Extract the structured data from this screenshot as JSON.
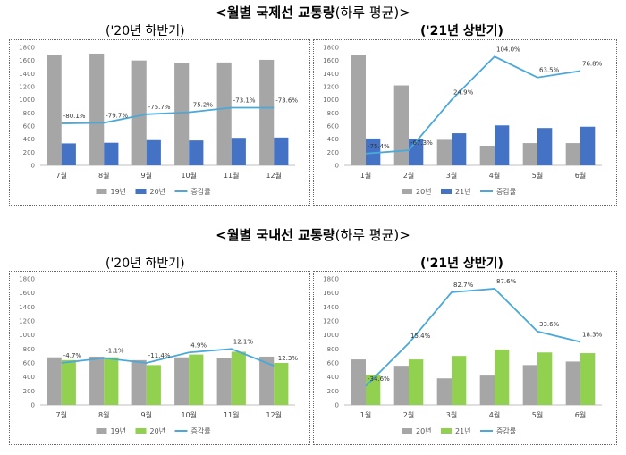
{
  "titles": {
    "international": {
      "bold": "<월별 국제선 교통량",
      "rest": "(하루 평균)>"
    },
    "domestic": {
      "bold": "<월별 국내선 교통량",
      "rest": "(하루 평균)>"
    }
  },
  "subtitles": {
    "intl_h2": "('20년 하반기)",
    "intl_h1": "('21년 상반기)",
    "dom_h2": "('20년 하반기)",
    "dom_h1": "('21년 상반기)"
  },
  "colors": {
    "grey": "#a6a6a6",
    "blue": "#4472c4",
    "green": "#92d050",
    "line": "#4ba8d8"
  },
  "chart_data": [
    {
      "id": "intl_h2",
      "type": "bar",
      "ylim": [
        0,
        1800
      ],
      "yticks": [
        0,
        200,
        400,
        600,
        800,
        1000,
        1200,
        1400,
        1600,
        1800
      ],
      "categories": [
        "7월",
        "8월",
        "9월",
        "10월",
        "11월",
        "12월"
      ],
      "series": [
        {
          "name": "19년",
          "values": [
            1690,
            1705,
            1600,
            1560,
            1570,
            1610
          ],
          "color": "grey"
        },
        {
          "name": "20년",
          "values": [
            335,
            345,
            385,
            380,
            420,
            425
          ],
          "color": "blue"
        }
      ],
      "line": {
        "name": "증감률",
        "values": [
          -80.1,
          -79.7,
          -75.7,
          -75.2,
          -73.1,
          -73.6
        ],
        "labels": [
          "-80.1%",
          "-79.7%",
          "-75.7%",
          "-75.2%",
          "-73.1%",
          "-73.6%"
        ],
        "ypos": [
          640,
          650,
          780,
          810,
          880,
          880
        ]
      }
    },
    {
      "id": "intl_h1",
      "type": "bar",
      "ylim": [
        0,
        1800
      ],
      "yticks": [
        0,
        200,
        400,
        600,
        800,
        1000,
        1200,
        1400,
        1600,
        1800
      ],
      "categories": [
        "1월",
        "2월",
        "3월",
        "4월",
        "5월",
        "6월"
      ],
      "series": [
        {
          "name": "20년",
          "values": [
            1680,
            1220,
            390,
            300,
            340,
            340
          ],
          "color": "grey"
        },
        {
          "name": "21년",
          "values": [
            410,
            405,
            490,
            610,
            570,
            590
          ],
          "color": "blue"
        }
      ],
      "line": {
        "name": "증감률",
        "values": [
          -75.4,
          -67.3,
          24.9,
          104.0,
          63.5,
          76.8
        ],
        "labels": [
          "-75.4%",
          "-67.3%",
          "24.9%",
          "104.0%",
          "63.5%",
          "76.8%"
        ],
        "ypos": [
          180,
          230,
          1000,
          1660,
          1340,
          1440
        ]
      }
    },
    {
      "id": "dom_h2",
      "type": "bar",
      "ylim": [
        0,
        1800
      ],
      "yticks": [
        0,
        200,
        400,
        600,
        800,
        1000,
        1200,
        1400,
        1600,
        1800
      ],
      "categories": [
        "7월",
        "8월",
        "9월",
        "10월",
        "11월",
        "12월"
      ],
      "series": [
        {
          "name": "19년",
          "values": [
            680,
            690,
            640,
            680,
            670,
            690
          ],
          "color": "grey"
        },
        {
          "name": "20년",
          "values": [
            640,
            680,
            570,
            720,
            760,
            600
          ],
          "color": "green"
        }
      ],
      "line": {
        "name": "증감률",
        "values": [
          -4.7,
          -1.1,
          -11.4,
          4.9,
          12.1,
          -12.3
        ],
        "labels": [
          "-4.7%",
          "-1.1%",
          "-11.4%",
          "4.9%",
          "12.1%",
          "-12.3%"
        ],
        "ypos": [
          600,
          670,
          600,
          750,
          800,
          560
        ]
      }
    },
    {
      "id": "dom_h1",
      "type": "bar",
      "ylim": [
        0,
        1800
      ],
      "yticks": [
        0,
        200,
        400,
        600,
        800,
        1000,
        1200,
        1400,
        1600,
        1800
      ],
      "categories": [
        "1월",
        "2월",
        "3월",
        "4월",
        "5월",
        "6월"
      ],
      "series": [
        {
          "name": "20년",
          "values": [
            650,
            560,
            380,
            420,
            570,
            620
          ],
          "color": "grey"
        },
        {
          "name": "21년",
          "values": [
            430,
            650,
            700,
            790,
            750,
            740
          ],
          "color": "green"
        }
      ],
      "line": {
        "name": "증감률",
        "values": [
          -34.6,
          15.4,
          82.7,
          87.6,
          33.6,
          18.3
        ],
        "labels": [
          "-34.6%",
          "15.4%",
          "82.7%",
          "87.6%",
          "33.6%",
          "18.3%"
        ],
        "ypos": [
          270,
          880,
          1610,
          1660,
          1050,
          900
        ]
      }
    }
  ]
}
